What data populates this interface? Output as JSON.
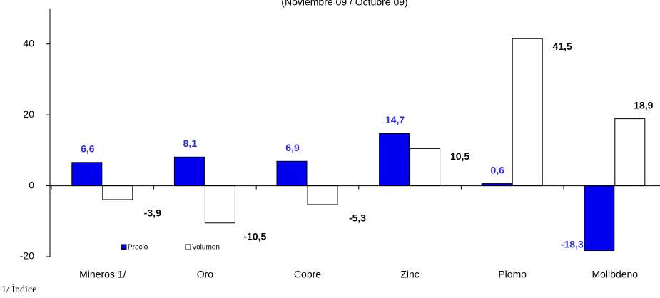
{
  "chart_data": {
    "type": "bar",
    "subtitle": "(Noviembre 09 / Octubre 09)",
    "categories": [
      "Mineros 1/",
      "Oro",
      "Cobre",
      "Zinc",
      "Plomo",
      "Molibdeno"
    ],
    "series": [
      {
        "name": "Precio",
        "color": "#0000ee",
        "label_color": "#2a2ae0",
        "values": [
          6.6,
          8.1,
          6.9,
          14.7,
          0.6,
          -18.3
        ],
        "value_labels": [
          "6,6",
          "8,1",
          "6,9",
          "14,7",
          "0,6",
          "-18,3"
        ]
      },
      {
        "name": "Volumen",
        "color": "#ffffff",
        "label_color": "#000000",
        "values": [
          -3.9,
          -10.5,
          -5.3,
          10.5,
          41.5,
          18.9
        ],
        "value_labels": [
          "-3,9",
          "-10,5",
          "-5,3",
          "10,5",
          "41,5",
          "18,9"
        ]
      }
    ],
    "ylim": [
      -20,
      50
    ],
    "yticks": [
      -20,
      0,
      20,
      40
    ],
    "footnote": "1/ Índice"
  }
}
